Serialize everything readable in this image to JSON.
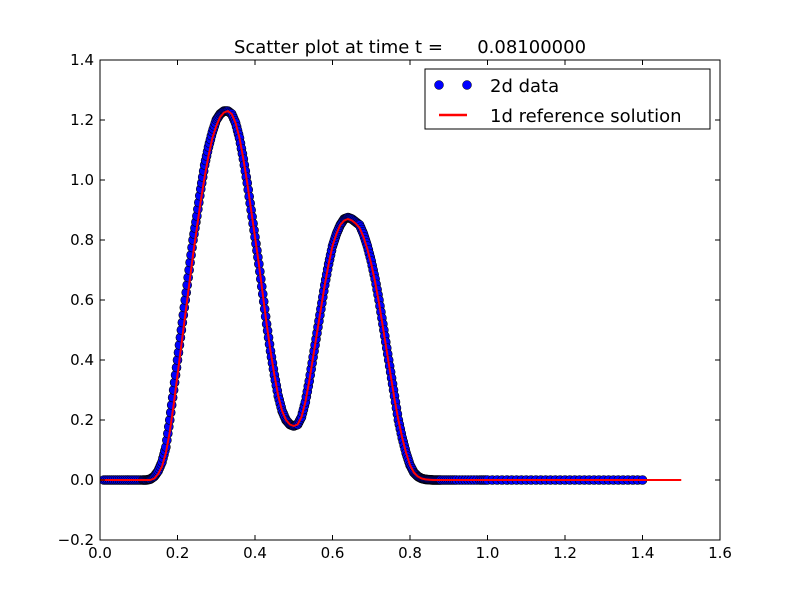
{
  "chart_data": {
    "type": "scatter",
    "title": "Scatter plot at time t =      0.08100000",
    "xlabel": "",
    "ylabel": "",
    "xlim": [
      0.0,
      1.6
    ],
    "ylim": [
      -0.2,
      1.4
    ],
    "grid": false,
    "legend_position": "top-right",
    "x_ticks": [
      {
        "value": 0.0,
        "label": "0.0"
      },
      {
        "value": 0.2,
        "label": "0.2"
      },
      {
        "value": 0.4,
        "label": "0.4"
      },
      {
        "value": 0.6,
        "label": "0.6"
      },
      {
        "value": 0.8,
        "label": "0.8"
      },
      {
        "value": 1.0,
        "label": "1.0"
      },
      {
        "value": 1.2,
        "label": "1.2"
      },
      {
        "value": 1.4,
        "label": "1.4"
      },
      {
        "value": 1.6,
        "label": "1.6"
      }
    ],
    "y_ticks": [
      {
        "value": -0.2,
        "label": "−0.2"
      },
      {
        "value": 0.0,
        "label": "0.0"
      },
      {
        "value": 0.2,
        "label": "0.2"
      },
      {
        "value": 0.4,
        "label": "0.4"
      },
      {
        "value": 0.6,
        "label": "0.6"
      },
      {
        "value": 0.8,
        "label": "0.8"
      },
      {
        "value": 1.0,
        "label": "1.0"
      },
      {
        "value": 1.2,
        "label": "1.2"
      },
      {
        "value": 1.4,
        "label": "1.4"
      }
    ],
    "series": [
      {
        "name": "2d data",
        "kind": "points",
        "color": "#0000ff",
        "edge_color": "#000000",
        "x": [
          0.01,
          0.03,
          0.05,
          0.07,
          0.09,
          0.11,
          0.12,
          0.13,
          0.14,
          0.15,
          0.16,
          0.17,
          0.18,
          0.19,
          0.2,
          0.21,
          0.22,
          0.23,
          0.24,
          0.25,
          0.26,
          0.27,
          0.28,
          0.29,
          0.3,
          0.31,
          0.32,
          0.33,
          0.34,
          0.35,
          0.36,
          0.37,
          0.38,
          0.39,
          0.4,
          0.41,
          0.42,
          0.43,
          0.44,
          0.45,
          0.46,
          0.47,
          0.48,
          0.49,
          0.5,
          0.51,
          0.52,
          0.53,
          0.54,
          0.55,
          0.56,
          0.57,
          0.58,
          0.59,
          0.6,
          0.61,
          0.62,
          0.63,
          0.64,
          0.65,
          0.66,
          0.67,
          0.68,
          0.69,
          0.7,
          0.71,
          0.72,
          0.73,
          0.74,
          0.75,
          0.76,
          0.77,
          0.78,
          0.79,
          0.8,
          0.81,
          0.82,
          0.83,
          0.84,
          0.85,
          0.86,
          0.87,
          0.88,
          0.9,
          0.92,
          0.95,
          0.98,
          1.0,
          1.05,
          1.1,
          1.15,
          1.2,
          1.25,
          1.3,
          1.35,
          1.4
        ],
        "y": [
          0.0,
          0.0,
          0.0,
          0.0,
          0.0,
          0.0,
          0.0,
          0.003,
          0.012,
          0.03,
          0.06,
          0.11,
          0.2,
          0.3,
          0.4,
          0.5,
          0.6,
          0.7,
          0.8,
          0.88,
          0.97,
          1.05,
          1.11,
          1.16,
          1.2,
          1.22,
          1.23,
          1.23,
          1.22,
          1.19,
          1.14,
          1.07,
          0.99,
          0.9,
          0.81,
          0.72,
          0.62,
          0.52,
          0.43,
          0.35,
          0.28,
          0.23,
          0.2,
          0.185,
          0.18,
          0.185,
          0.21,
          0.26,
          0.33,
          0.41,
          0.49,
          0.57,
          0.65,
          0.72,
          0.78,
          0.82,
          0.85,
          0.87,
          0.875,
          0.87,
          0.86,
          0.85,
          0.82,
          0.78,
          0.73,
          0.67,
          0.6,
          0.52,
          0.44,
          0.36,
          0.28,
          0.2,
          0.14,
          0.09,
          0.05,
          0.025,
          0.012,
          0.005,
          0.002,
          0.001,
          0.0,
          0.0,
          0.0,
          0.0,
          0.0,
          0.0,
          0.0,
          0.0,
          0.0,
          0.0,
          0.0,
          0.0,
          0.0,
          0.0,
          0.0,
          0.0
        ]
      },
      {
        "name": "1d reference solution",
        "kind": "line",
        "color": "#ff0000",
        "x": [
          0.0,
          0.05,
          0.1,
          0.12,
          0.13,
          0.14,
          0.15,
          0.16,
          0.17,
          0.18,
          0.19,
          0.2,
          0.21,
          0.22,
          0.23,
          0.24,
          0.25,
          0.26,
          0.27,
          0.28,
          0.29,
          0.3,
          0.31,
          0.32,
          0.33,
          0.34,
          0.35,
          0.36,
          0.37,
          0.38,
          0.39,
          0.4,
          0.41,
          0.42,
          0.43,
          0.44,
          0.45,
          0.46,
          0.47,
          0.48,
          0.49,
          0.5,
          0.51,
          0.52,
          0.53,
          0.54,
          0.55,
          0.56,
          0.57,
          0.58,
          0.59,
          0.6,
          0.61,
          0.62,
          0.63,
          0.64,
          0.65,
          0.66,
          0.67,
          0.68,
          0.69,
          0.7,
          0.71,
          0.72,
          0.73,
          0.74,
          0.75,
          0.76,
          0.77,
          0.78,
          0.79,
          0.8,
          0.81,
          0.82,
          0.83,
          0.84,
          0.85,
          0.86,
          0.87,
          0.88,
          0.9,
          1.0,
          1.2,
          1.4,
          1.5
        ],
        "y": [
          0.0,
          0.0,
          0.0,
          0.0,
          0.0,
          0.005,
          0.02,
          0.045,
          0.09,
          0.16,
          0.25,
          0.35,
          0.45,
          0.55,
          0.65,
          0.75,
          0.84,
          0.93,
          1.01,
          1.08,
          1.14,
          1.18,
          1.21,
          1.225,
          1.23,
          1.22,
          1.19,
          1.14,
          1.07,
          0.99,
          0.9,
          0.81,
          0.72,
          0.62,
          0.52,
          0.43,
          0.35,
          0.28,
          0.23,
          0.2,
          0.185,
          0.18,
          0.185,
          0.21,
          0.26,
          0.33,
          0.41,
          0.49,
          0.57,
          0.65,
          0.72,
          0.78,
          0.82,
          0.85,
          0.865,
          0.87,
          0.865,
          0.855,
          0.84,
          0.81,
          0.77,
          0.72,
          0.66,
          0.59,
          0.51,
          0.43,
          0.35,
          0.27,
          0.2,
          0.14,
          0.09,
          0.05,
          0.025,
          0.012,
          0.005,
          0.002,
          0.001,
          0.0,
          0.0,
          0.0,
          0.0,
          0.0,
          0.0,
          0.0,
          0.0
        ]
      }
    ]
  }
}
